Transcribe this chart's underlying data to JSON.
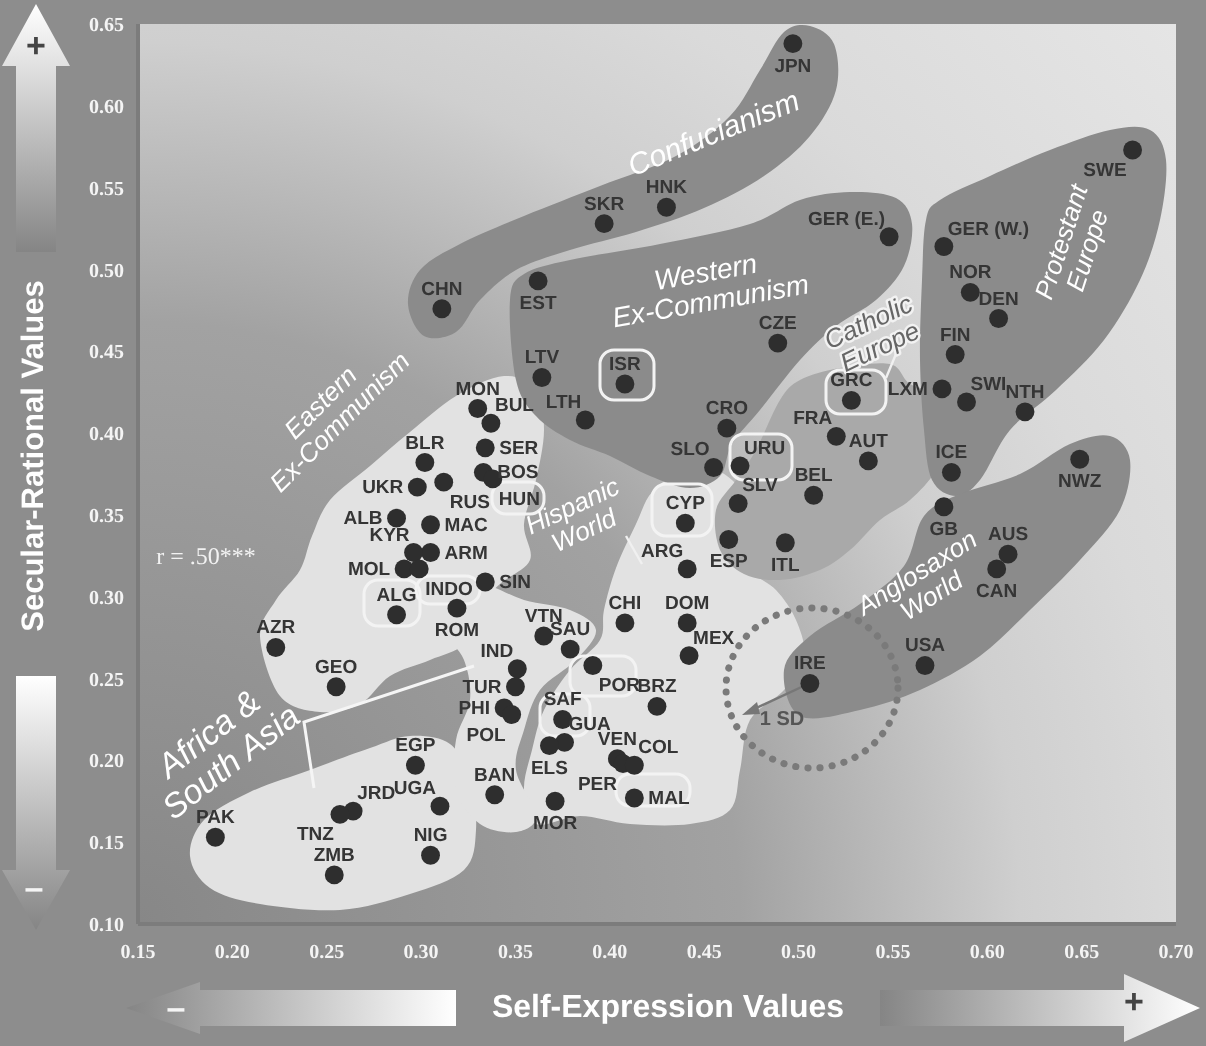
{
  "chart_data": {
    "type": "scatter",
    "xlabel": "Self-Expression Values",
    "ylabel": "Secular-Rational Values",
    "color": "#2e2e2e",
    "marker": "circle",
    "xlim": [
      0.15,
      0.7
    ],
    "ylim": [
      0.1,
      0.65
    ],
    "xticks": [
      0.15,
      {
        "value": 0.2,
        "label": "0.20"
      },
      0.25,
      {
        "value": 0.3,
        "label": "0.30"
      },
      0.35,
      {
        "value": 0.4,
        "label": "0.40"
      },
      0.45,
      {
        "value": 0.5,
        "label": "0.50"
      },
      0.55,
      {
        "value": 0.6,
        "label": "0.60"
      },
      0.65,
      {
        "value": 0.7,
        "label": "0.70"
      }
    ],
    "yticks": [
      {
        "value": 0.1,
        "label": "0.10"
      },
      0.15,
      {
        "value": 0.2,
        "label": "0.20"
      },
      0.25,
      {
        "value": 0.3,
        "label": "0.30"
      },
      0.35,
      {
        "value": 0.4,
        "label": "0.40"
      },
      0.45,
      {
        "value": 0.5,
        "label": "0.50"
      },
      0.55,
      {
        "value": 0.6,
        "label": "0.60"
      },
      0.65
    ],
    "x": [
      0.497,
      0.43,
      0.397,
      0.311,
      0.362,
      0.548,
      0.577,
      0.677,
      0.591,
      0.606,
      0.583,
      0.489,
      0.364,
      0.408,
      0.387,
      0.33,
      0.337,
      0.462,
      0.528,
      0.576,
      0.589,
      0.62,
      0.52,
      0.537,
      0.455,
      0.469,
      0.302,
      0.334,
      0.333,
      0.338,
      0.581,
      0.649,
      0.508,
      0.577,
      0.298,
      0.312,
      0.468,
      0.44,
      0.287,
      0.305,
      0.463,
      0.493,
      0.611,
      0.605,
      0.305,
      0.296,
      0.441,
      0.291,
      0.299,
      0.334,
      0.319,
      0.287,
      0.223,
      0.408,
      0.441,
      0.365,
      0.379,
      0.442,
      0.567,
      0.351,
      0.391,
      0.506,
      0.255,
      0.35,
      0.425,
      0.344,
      0.348,
      0.375,
      0.376,
      0.368,
      0.404,
      0.407,
      0.413,
      0.297,
      0.339,
      0.413,
      0.371,
      0.31,
      0.264,
      0.257,
      0.191,
      0.305,
      0.254
    ],
    "values": [
      0.638,
      0.538,
      0.528,
      0.476,
      0.493,
      0.52,
      0.514,
      0.573,
      0.486,
      0.47,
      0.448,
      0.455,
      0.434,
      0.43,
      0.408,
      0.415,
      0.406,
      0.403,
      0.42,
      0.427,
      0.419,
      0.413,
      0.398,
      0.383,
      0.379,
      0.38,
      0.382,
      0.391,
      0.376,
      0.372,
      0.376,
      0.384,
      0.362,
      0.355,
      0.367,
      0.37,
      0.357,
      0.345,
      0.348,
      0.344,
      0.335,
      0.333,
      0.326,
      0.317,
      0.327,
      0.327,
      0.317,
      0.317,
      0.317,
      0.309,
      0.293,
      0.289,
      0.269,
      0.284,
      0.284,
      0.276,
      0.268,
      0.264,
      0.258,
      0.256,
      0.258,
      0.247,
      0.245,
      0.245,
      0.233,
      0.232,
      0.228,
      0.225,
      0.211,
      0.209,
      0.201,
      0.198,
      0.197,
      0.197,
      0.179,
      0.177,
      0.175,
      0.172,
      0.169,
      0.167,
      0.153,
      0.142,
      0.13
    ],
    "value_labels": [
      "JPN",
      "HNK",
      "SKR",
      "CHN",
      "EST",
      "GER (E.)",
      "GER (W.)",
      "SWE",
      "NOR",
      "DEN",
      "FIN",
      "CZE",
      "LTV",
      "ISR",
      "LTH",
      "MON",
      "BUL",
      "CRO",
      "GRC",
      "LXM",
      "SWI",
      "NTH",
      "FRA",
      "AUT",
      "SLO",
      "URU",
      "BLR",
      "SER",
      "BOS",
      "HUN",
      "ICE",
      "NWZ",
      "BEL",
      "GB",
      "UKR",
      "RUS",
      "SLV",
      "CYP",
      "ALB",
      "MAC",
      "ESP",
      "ITL",
      "AUS",
      "CAN",
      "ARM",
      "KYR",
      "ARG",
      "MOL",
      "INDO",
      "SIN",
      "ROM",
      "ALG",
      "AZR",
      "CHI",
      "DOM",
      "VTN",
      "SAU",
      "MEX",
      "USA",
      "IND",
      "POR",
      "IRE",
      "GEO",
      "TUR",
      "BRZ",
      "PHI",
      "POL",
      "SAF",
      "GUA",
      "ELS",
      "VEN",
      "PER",
      "COL",
      "EGP",
      "BAN",
      "MAL",
      "MOR",
      "UGA",
      "JRD",
      "TNZ",
      "PAK",
      "NIG",
      "ZMB"
    ],
    "annotations": [
      "Confucianism",
      "Western Ex-Communism",
      "Catholic Europe",
      "Protestant Europe",
      "Eastern Ex-Communism",
      "Hispanic World",
      "Anglosaxon World",
      "Africa & South Asia",
      "r = .50***",
      "1 SD",
      "+",
      "–",
      "–",
      "+"
    ]
  }
}
